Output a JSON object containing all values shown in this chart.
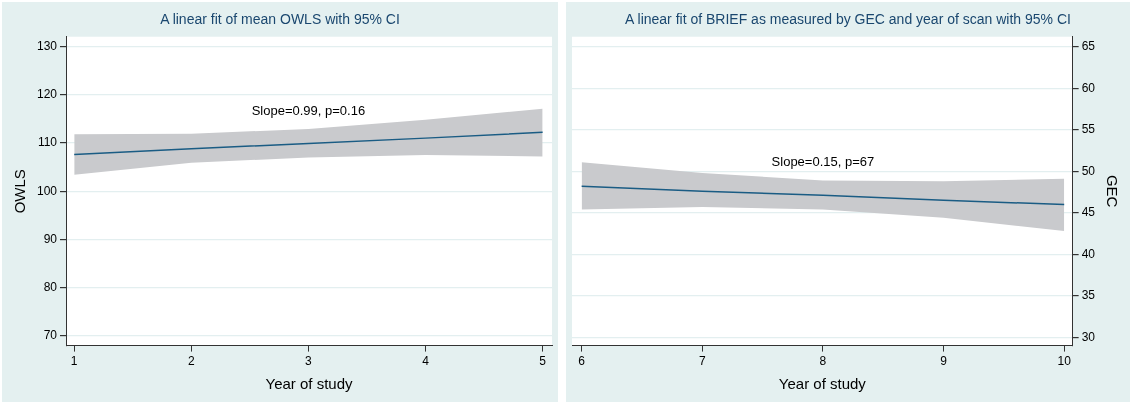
{
  "chart_data": [
    {
      "type": "line",
      "title": "A linear fit of mean OWLS with 95% CI",
      "xlabel": "Year of study",
      "ylabel": "OWLS",
      "xlim": [
        0.93,
        5.08
      ],
      "xticks": [
        1,
        2,
        3,
        4,
        5
      ],
      "ylim": [
        68,
        132
      ],
      "yticks": [
        70,
        80,
        90,
        100,
        110,
        120,
        130
      ],
      "grid": "y",
      "legend": false,
      "marker": "none",
      "series": [
        {
          "color": "#1a5c84",
          "x": [
            1,
            2,
            3,
            4,
            5
          ],
          "values": [
            107.6,
            108.8,
            109.9,
            111.0,
            112.2
          ],
          "lower": [
            103.4,
            105.9,
            107.0,
            107.5,
            107.2
          ],
          "upper": [
            111.8,
            111.9,
            112.9,
            114.8,
            117.1
          ]
        }
      ],
      "annotations": [
        "Slope=0.99, p=0.16"
      ]
    },
    {
      "type": "line",
      "title": "A linear fit of BRIEF as measured by GEC and year of scan with 95% CI",
      "xlabel": "Year of study",
      "y2label": "GEC",
      "xlim": [
        5.92,
        10.07
      ],
      "xticks": [
        6,
        7,
        8,
        9,
        10
      ],
      "y2lim": [
        29,
        66.2
      ],
      "y2ticks": [
        30,
        35,
        40,
        45,
        50,
        55,
        60,
        65
      ],
      "grid": "y",
      "legend": false,
      "marker": "none",
      "series": [
        {
          "color": "#1a5c84",
          "axis": "y2",
          "x": [
            6,
            7,
            8,
            9,
            10
          ],
          "values": [
            48.2,
            47.6,
            47.1,
            46.5,
            46.0
          ],
          "lower": [
            45.4,
            45.7,
            45.4,
            44.4,
            42.8
          ],
          "upper": [
            51.1,
            49.8,
            48.9,
            48.8,
            49.1
          ]
        }
      ],
      "annotations": [
        "Slope=0.15, p=67"
      ]
    }
  ]
}
